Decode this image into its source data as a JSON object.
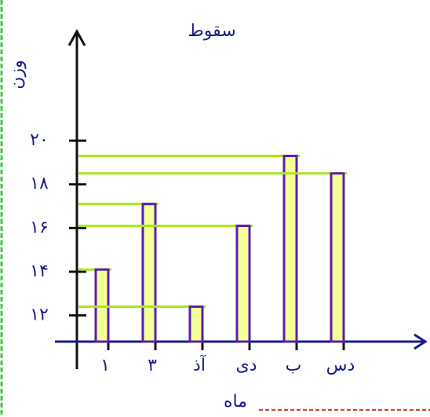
{
  "chart_data": {
    "type": "bar",
    "title": "سقوط",
    "x_label": "ماه",
    "y_label": "وزن",
    "categories": [
      "۱",
      "۳",
      "آذ",
      "دی",
      "ب",
      "دس"
    ],
    "values": [
      14.1,
      17.1,
      12.4,
      16.1,
      19.3,
      18.5
    ],
    "color": "#5b1fa8",
    "ylim": [
      10.8,
      25
    ],
    "yticks": [
      {
        "value": 12,
        "label": "۱۲"
      },
      {
        "value": 14,
        "label": "۱۴"
      },
      {
        "value": 16,
        "label": "۱۶"
      },
      {
        "value": 18,
        "label": "۱۸"
      },
      {
        "value": 20,
        "label": "۲۰"
      }
    ],
    "grid": false
  }
}
